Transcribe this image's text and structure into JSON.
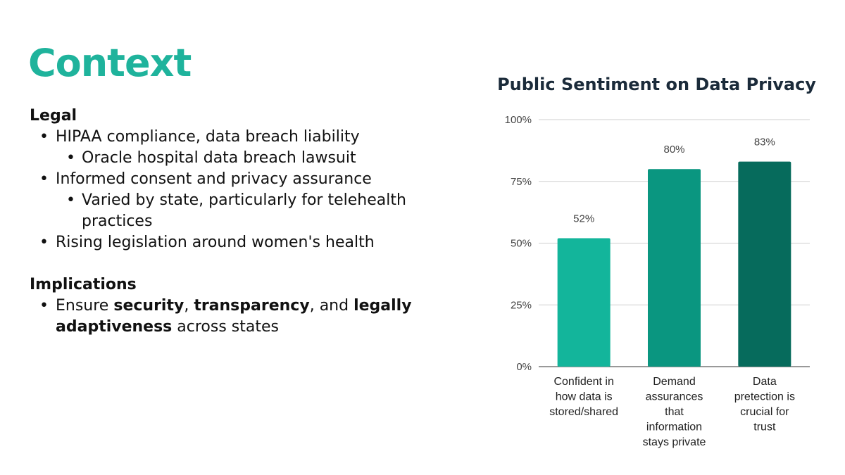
{
  "slide": {
    "title": "Context",
    "legal_heading": "Legal",
    "legal_items": [
      {
        "text": "HIPAA compliance, data breach liability",
        "sub": [
          "Oracle hospital data breach lawsuit"
        ]
      },
      {
        "text": "Informed consent and privacy assurance",
        "sub": [
          "Varied by state, particularly for telehealth practices"
        ]
      },
      {
        "text": "Rising legislation around women's health",
        "sub": []
      }
    ],
    "implications_heading": "Implications",
    "implication": {
      "p1": "Ensure ",
      "b1": "security",
      "p2": ", ",
      "b2": "transparency",
      "p3": ", and ",
      "b3": "legally adaptiveness",
      "p4": " across states"
    }
  },
  "chart_data": {
    "type": "bar",
    "title": "Public Sentiment on Data Privacy",
    "categories": [
      [
        "Confident in",
        "how data is",
        "stored/shared"
      ],
      [
        "Demand",
        "assurances",
        "that",
        "information",
        "stays private"
      ],
      [
        "Data",
        "pretection is",
        "crucial for",
        "trust"
      ]
    ],
    "values": [
      52,
      80,
      83
    ],
    "data_labels": [
      "52%",
      "80%",
      "83%"
    ],
    "colors": [
      "#13b59b",
      "#0a9680",
      "#066b5c"
    ],
    "ylim": [
      0,
      100
    ],
    "yticks": [
      0,
      25,
      50,
      75,
      100
    ],
    "ytick_labels": [
      "0%",
      "25%",
      "50%",
      "75%",
      "100%"
    ],
    "grid": true,
    "gridline_color": "#cfcfcf",
    "title_color": "#1b2b3a",
    "accent_color": "#1fb39c"
  }
}
